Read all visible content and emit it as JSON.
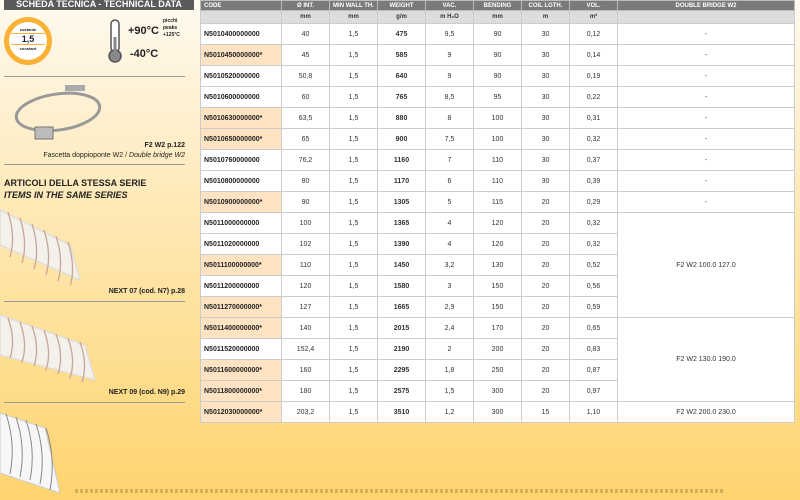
{
  "header": "SCHEDA TECNICA - TECHNICAL DATA",
  "thickness": {
    "top": "costante",
    "value": "1,5",
    "bottom": "constant"
  },
  "temperature": {
    "max": "+90°C",
    "min": "-40°C",
    "peaks": [
      "picchi",
      "peaks",
      "+125°C"
    ]
  },
  "accessory": {
    "ref": "F2 W2 p.122",
    "desc_it": "Fascetta doppioponte W2 / ",
    "desc_en": "Double bridge W2"
  },
  "series_title": [
    "ARTICOLI DELLA STESSA SERIE",
    "ITEMS IN THE SAME SERIES"
  ],
  "series": [
    {
      "label": "NEXT 07 (cod. N7) p.28"
    },
    {
      "label": "NEXT 09 (cod. N9) p.29"
    }
  ],
  "colors": {
    "star_row": "#fde3c2",
    "header": "#7a7a7a",
    "badge": "#f9b233"
  },
  "table": {
    "columns": [
      "CODE",
      "Ø INT.",
      "MIN WALL TH.",
      "WEIGHT",
      "VAC.",
      "BENDING",
      "COIL LGTH.",
      "VOL.",
      "DOUBLE BRIDGE W2"
    ],
    "units": [
      "",
      "mm",
      "mm",
      "g/m",
      "m H₂O",
      "mm",
      "m",
      "m³",
      ""
    ],
    "rows": [
      [
        "N5010400000000",
        "40",
        "1,5",
        "475",
        "9,5",
        "90",
        "30",
        "0,12",
        "-"
      ],
      [
        "N5010450000000*",
        "45",
        "1,5",
        "585",
        "9",
        "90",
        "30",
        "0,14",
        "-"
      ],
      [
        "N5010520000000",
        "50,8",
        "1,5",
        "640",
        "9",
        "90",
        "30",
        "0,19",
        "-"
      ],
      [
        "N5010600000000",
        "60",
        "1,5",
        "765",
        "8,5",
        "95",
        "30",
        "0,22",
        "-"
      ],
      [
        "N5010630000000*",
        "63,5",
        "1,5",
        "880",
        "8",
        "100",
        "30",
        "0,31",
        "-"
      ],
      [
        "N5010650000000*",
        "65",
        "1,5",
        "900",
        "7,5",
        "100",
        "30",
        "0,32",
        "-"
      ],
      [
        "N5010760000000",
        "76,2",
        "1,5",
        "1160",
        "7",
        "110",
        "30",
        "0,37",
        "-"
      ],
      [
        "N5010800000000",
        "80",
        "1,5",
        "1170",
        "6",
        "110",
        "30",
        "0,39",
        "-"
      ],
      [
        "N5010900000000*",
        "90",
        "1,5",
        "1305",
        "5",
        "115",
        "20",
        "0,29",
        "-"
      ],
      [
        "N5011000000000",
        "100",
        "1,5",
        "1365",
        "4",
        "120",
        "20",
        "0,32",
        "F2 W2 100.0 127.0"
      ],
      [
        "N5011020000000",
        "102",
        "1,5",
        "1390",
        "4",
        "120",
        "20",
        "0,32",
        ""
      ],
      [
        "N5011100000000*",
        "110",
        "1,5",
        "1450",
        "3,2",
        "130",
        "20",
        "0,52",
        ""
      ],
      [
        "N5011200000000",
        "120",
        "1,5",
        "1580",
        "3",
        "150",
        "20",
        "0,56",
        ""
      ],
      [
        "N5011270000000*",
        "127",
        "1,5",
        "1665",
        "2,9",
        "150",
        "20",
        "0,59",
        ""
      ],
      [
        "N5011400000000*",
        "140",
        "1,5",
        "2015",
        "2,4",
        "170",
        "20",
        "0,65",
        "F2 W2 130.0 190.0"
      ],
      [
        "N5011520000000",
        "152,4",
        "1,5",
        "2190",
        "2",
        "200",
        "20",
        "0,83",
        ""
      ],
      [
        "N5011600000000*",
        "160",
        "1,5",
        "2295",
        "1,8",
        "250",
        "20",
        "0,87",
        ""
      ],
      [
        "N5011800000000*",
        "180",
        "1,5",
        "2575",
        "1,5",
        "300",
        "20",
        "0,97",
        ""
      ],
      [
        "N5012030000000*",
        "203,2",
        "1,5",
        "3510",
        "1,2",
        "300",
        "15",
        "1,10",
        "F2 W2 200.0 230.0"
      ]
    ]
  }
}
